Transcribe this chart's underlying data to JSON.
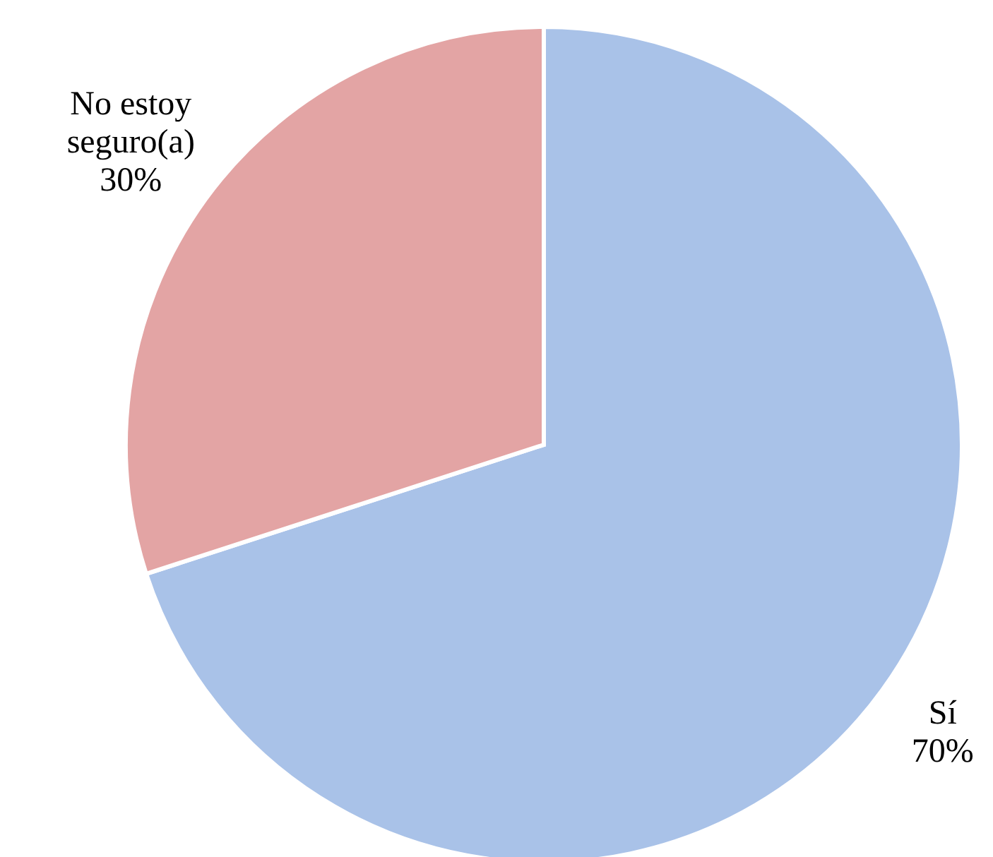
{
  "chart_data": {
    "type": "pie",
    "categories": [
      "Sí",
      "No estoy seguro(a)"
    ],
    "values": [
      70,
      30
    ],
    "colors": [
      "#a9c2e8",
      "#e3a4a4"
    ],
    "value_labels": [
      "70%",
      "30%"
    ]
  }
}
